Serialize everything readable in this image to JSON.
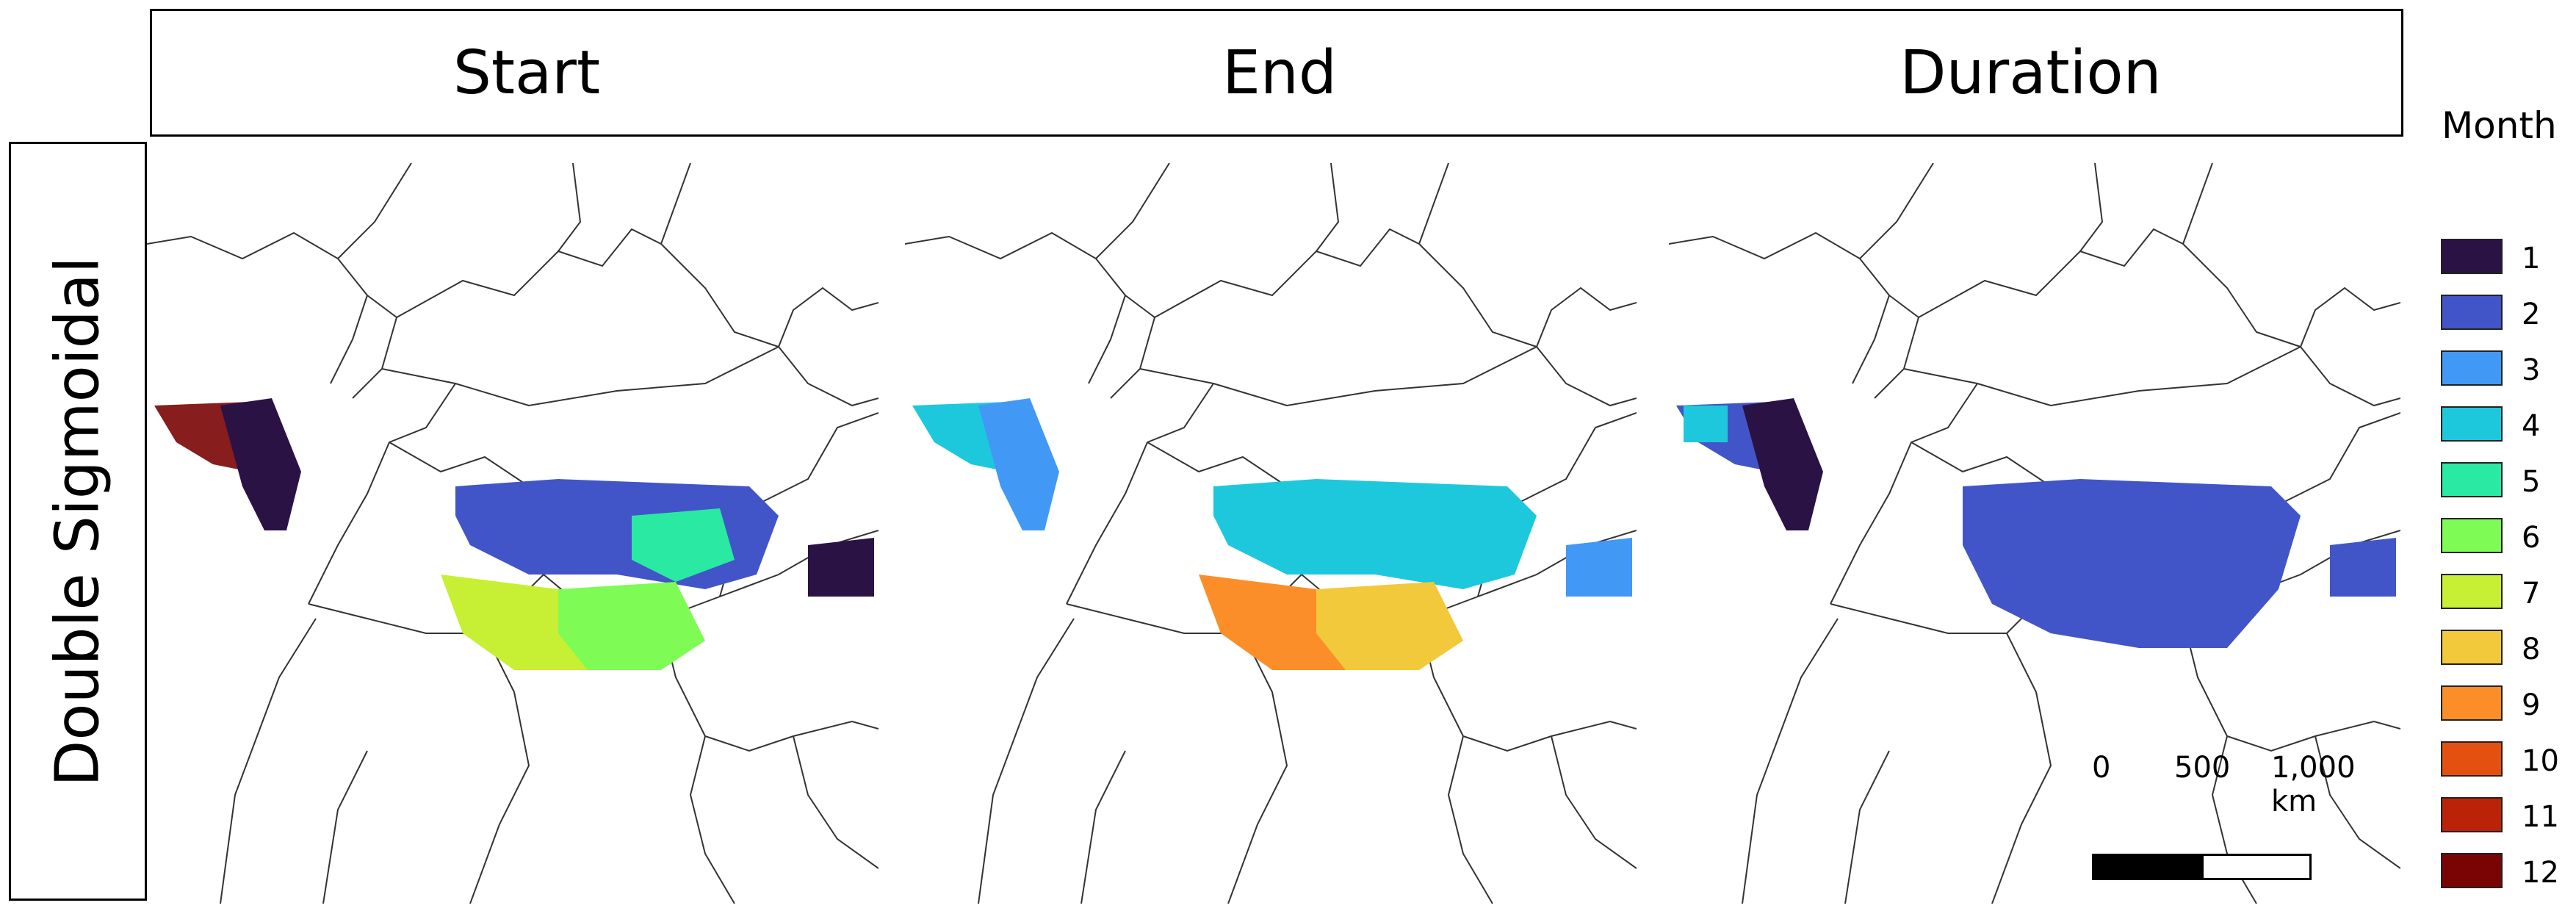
{
  "figure": {
    "columns": [
      "Start",
      "End",
      "Duration"
    ],
    "row_label": "Double Sigmoidal"
  },
  "legend": {
    "title": "Month",
    "items": [
      {
        "label": "1",
        "color": "#2a1245"
      },
      {
        "label": "2",
        "color": "#4155c8"
      },
      {
        "label": "3",
        "color": "#4298f5"
      },
      {
        "label": "4",
        "color": "#1ec8dc"
      },
      {
        "label": "5",
        "color": "#2ae9a3"
      },
      {
        "label": "6",
        "color": "#7efb54"
      },
      {
        "label": "7",
        "color": "#c7ef34"
      },
      {
        "label": "8",
        "color": "#f1c93b"
      },
      {
        "label": "9",
        "color": "#fb8e28"
      },
      {
        "label": "10",
        "color": "#e4500f"
      },
      {
        "label": "11",
        "color": "#bb2207"
      },
      {
        "label": "12",
        "color": "#7a0403"
      }
    ]
  },
  "scale_bar": {
    "labels": [
      "0",
      "500",
      "1,000 km"
    ],
    "colors": [
      "#000000",
      "#ffffff"
    ]
  },
  "map": {
    "border_color": "#333333",
    "panels": [
      {
        "name": "start",
        "regions": [
          {
            "color_month": 12,
            "opacity": 0.9
          },
          {
            "color_month": 2
          },
          {
            "color_month": 1
          },
          {
            "color_month": 7
          },
          {
            "color_month": 6
          },
          {
            "color_month": 5
          },
          {
            "color_month": 1
          }
        ]
      },
      {
        "name": "end",
        "regions": [
          {
            "color_month": 4
          },
          {
            "color_month": 3
          },
          {
            "color_month": 4
          },
          {
            "color_month": 9
          },
          {
            "color_month": 8
          },
          {
            "color_month": 3
          }
        ]
      },
      {
        "name": "duration",
        "regions": [
          {
            "color_month": 2
          },
          {
            "color_month": 4
          },
          {
            "color_month": 2
          },
          {
            "color_month": 1
          },
          {
            "color_month": 2
          }
        ]
      }
    ]
  }
}
